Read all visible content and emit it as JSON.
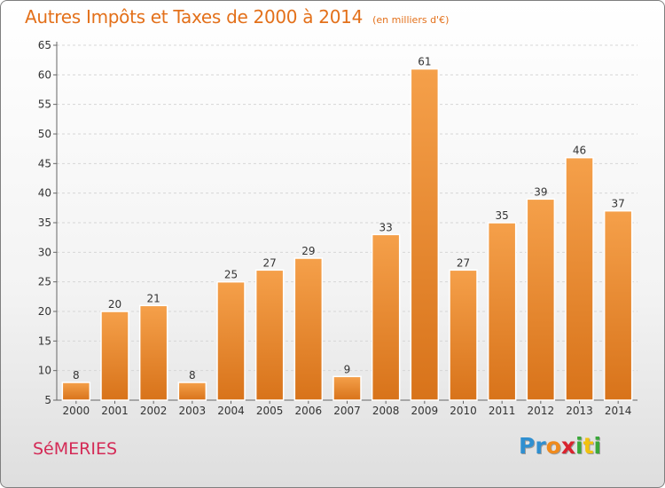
{
  "title": "Autres Impôts et Taxes de 2000 à 2014",
  "unit_note": "(en milliers d'€)",
  "commune": "SéMERIES",
  "logo": {
    "letters": [
      "P",
      "r",
      "o",
      "x",
      "i",
      "t",
      "i"
    ],
    "colors": [
      "#2f8fd0",
      "#2f8fd0",
      "#f08a1c",
      "#d9232e",
      "#3aa83a",
      "#f2c20f",
      "#3aa83a"
    ]
  },
  "colors": {
    "bar": "#f0902e",
    "title": "#e3701a",
    "commune": "#d42a56"
  },
  "chart_data": {
    "type": "bar",
    "title": "Autres Impôts et Taxes de 2000 à 2014",
    "subtitle": "(en milliers d'€)",
    "categories": [
      "2000",
      "2001",
      "2002",
      "2003",
      "2004",
      "2005",
      "2006",
      "2007",
      "2008",
      "2009",
      "2010",
      "2011",
      "2012",
      "2013",
      "2014"
    ],
    "values": [
      8,
      20,
      21,
      8,
      25,
      27,
      29,
      9,
      33,
      61,
      27,
      35,
      39,
      46,
      37
    ],
    "ylim": [
      5,
      65
    ],
    "yticks": [
      5,
      10,
      15,
      20,
      25,
      30,
      35,
      40,
      45,
      50,
      55,
      60,
      65
    ],
    "grid": true,
    "xlabel": "",
    "ylabel": ""
  }
}
